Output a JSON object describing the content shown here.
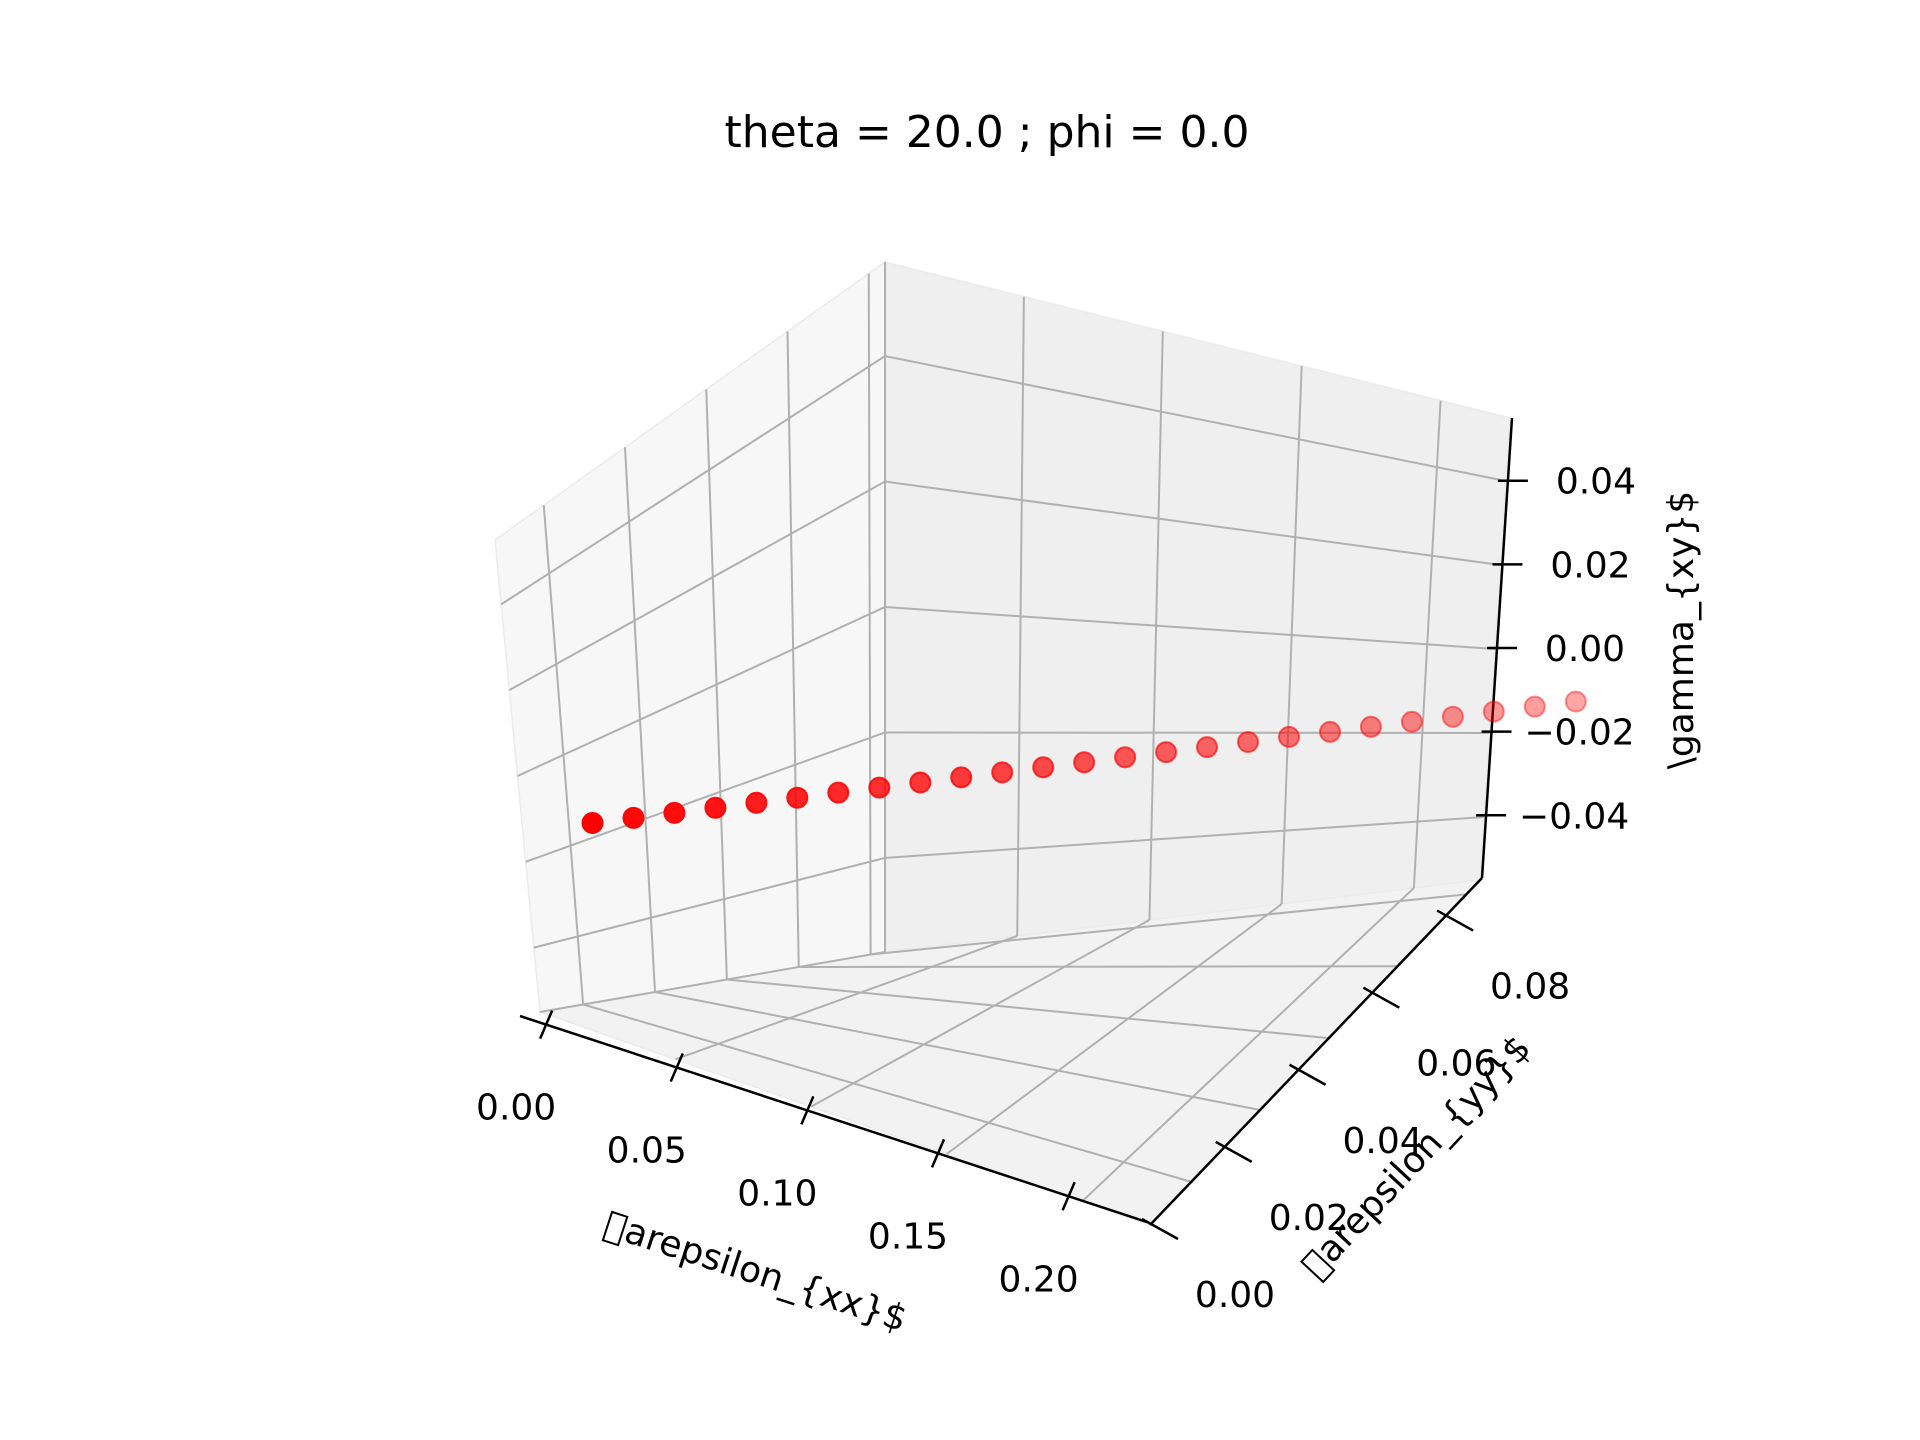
{
  "chart_data": {
    "type": "scatter",
    "projection": "3d",
    "title": "theta = 20.0 ; phi = 0.0",
    "xlabel": "\u0000arepsilon_{xx}$",
    "ylabel": "\u0000arepsilon_{yy}$",
    "zlabel": "\\gamma_{xy}$",
    "xlim": [
      -0.01,
      0.23
    ],
    "ylim": [
      0.0,
      0.09
    ],
    "zlim": [
      -0.055,
      0.055
    ],
    "xticks": [
      "0.00",
      "0.05",
      "0.10",
      "0.15",
      "0.20"
    ],
    "yticks": [
      "0.00",
      "0.02",
      "0.04",
      "0.06",
      "0.08"
    ],
    "zticks": [
      "−0.04",
      "−0.02",
      "0.00",
      "0.02",
      "0.04"
    ],
    "grid": true,
    "marker_color": "#ff0000",
    "series": [
      {
        "x": [
          0.0,
          0.0,
          0.0,
          0.0,
          0.0,
          0.0,
          0.0,
          0.0,
          0.0,
          0.0,
          0.0,
          0.0,
          0.0,
          0.0,
          0.0,
          0.0,
          0.0,
          0.0,
          0.0,
          0.0,
          0.0,
          0.0,
          0.0,
          0.0,
          0.0
        ],
        "y": [
          0.0,
          0.0036,
          0.0072,
          0.0108,
          0.0144,
          0.018,
          0.0216,
          0.0252,
          0.0288,
          0.0324,
          0.036,
          0.0396,
          0.0432,
          0.0468,
          0.0504,
          0.054,
          0.0576,
          0.0612,
          0.0648,
          0.0684,
          0.072,
          0.0756,
          0.0792,
          0.0828,
          0.0864
        ],
        "z": [
          0.0,
          0.0,
          0.0,
          0.0,
          0.0,
          0.0,
          0.0,
          0.0,
          0.0,
          0.0,
          0.0,
          0.0,
          0.0,
          0.0,
          0.0,
          0.0,
          0.0,
          0.0,
          0.0,
          0.0,
          0.0,
          0.0,
          0.0,
          0.0,
          0.0
        ]
      }
    ]
  }
}
